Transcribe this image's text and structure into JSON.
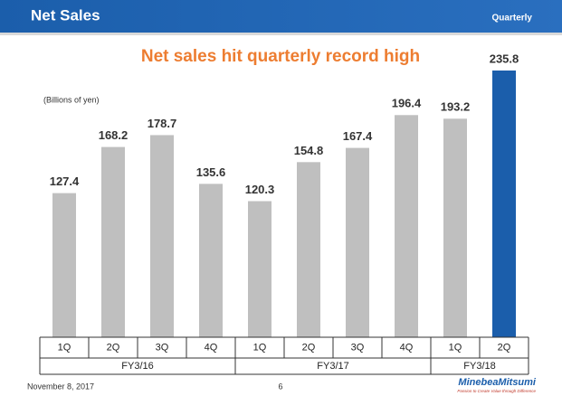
{
  "header": {
    "title": "Net Sales",
    "tag": "Quarterly"
  },
  "chart_data": {
    "type": "bar",
    "title": "Net sales hit quarterly record high",
    "unit_label": "(Billions of yen)",
    "groups": [
      {
        "name": "FY3/16",
        "categories": [
          "1Q",
          "2Q",
          "3Q",
          "4Q"
        ],
        "values": [
          127.4,
          168.2,
          178.7,
          135.6
        ],
        "colors": [
          "#bfbfbf",
          "#bfbfbf",
          "#bfbfbf",
          "#bfbfbf"
        ]
      },
      {
        "name": "FY3/17",
        "categories": [
          "1Q",
          "2Q",
          "3Q",
          "4Q"
        ],
        "values": [
          120.3,
          154.8,
          167.4,
          196.4
        ],
        "colors": [
          "#bfbfbf",
          "#bfbfbf",
          "#bfbfbf",
          "#bfbfbf"
        ]
      },
      {
        "name": "FY3/18",
        "categories": [
          "1Q",
          "2Q"
        ],
        "values": [
          193.2,
          235.8
        ],
        "colors": [
          "#bfbfbf",
          "#1b5eab"
        ]
      }
    ]
  },
  "footer": {
    "date": "November 8, 2017",
    "page": "6",
    "brand": "MinebeaMitsumi",
    "slogan": "Passion to Create Value through Difference"
  }
}
